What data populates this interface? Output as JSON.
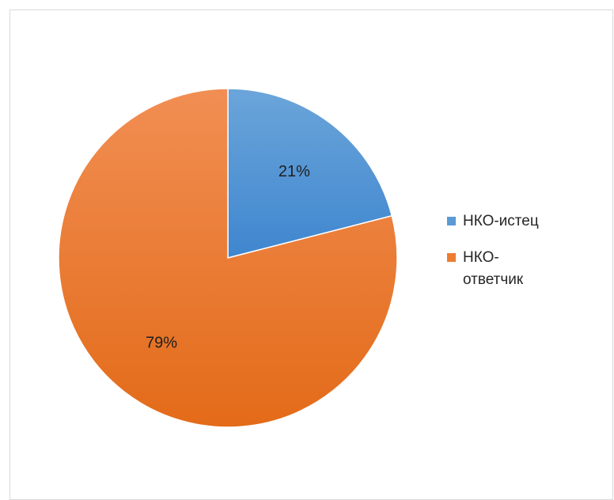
{
  "chart_data": {
    "type": "pie",
    "categories": [
      "НКО-истец",
      "НКО-ответчик"
    ],
    "values": [
      21,
      79
    ],
    "labels": [
      "21%",
      "79%"
    ],
    "colors": [
      "#5b9bd5",
      "#ed7d31"
    ],
    "legend_position": "right"
  },
  "legend": {
    "items": [
      {
        "label": "НКО-истец",
        "color": "#5b9bd5"
      },
      {
        "label": "НКО-\nответчик",
        "color": "#ed7d31"
      }
    ]
  }
}
